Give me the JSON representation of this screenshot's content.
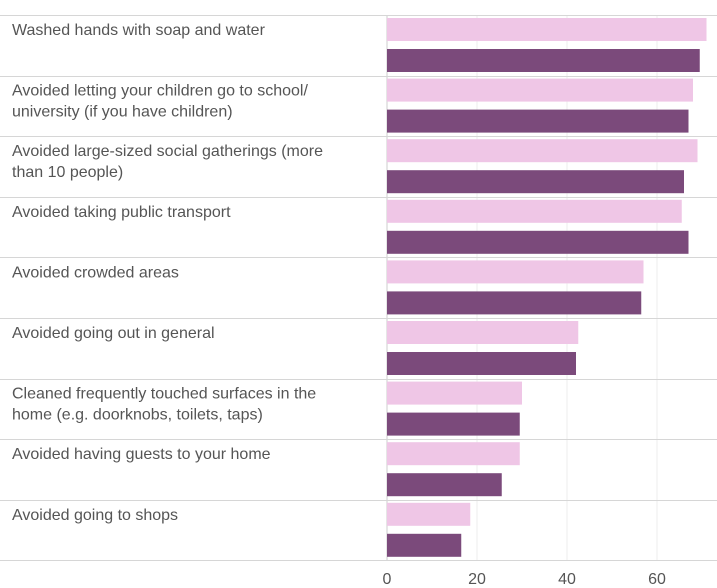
{
  "chart_data": {
    "type": "bar",
    "orientation": "horizontal",
    "categories": [
      [
        "Washed hands with soap and water"
      ],
      [
        "Avoided letting your children go to school/",
        "university  (if you have children)"
      ],
      [
        "Avoided large-sized social gatherings (more",
        "than 10 people)"
      ],
      [
        "Avoided taking public transport"
      ],
      [
        "Avoided crowded areas"
      ],
      [
        "Avoided going out in general"
      ],
      [
        "Cleaned frequently touched surfaces in the",
        "home (e.g. doorknobs, toilets, taps)"
      ],
      [
        "Avoided having guests to your home"
      ],
      [
        "Avoided going to shops"
      ]
    ],
    "series": [
      {
        "values": [
          71,
          68,
          69,
          65.5,
          57,
          42.5,
          30,
          29.5,
          18.5
        ],
        "color": "#efc6e6"
      },
      {
        "values": [
          69.5,
          67,
          66,
          67,
          56.5,
          42,
          29.5,
          25.5,
          16.5
        ],
        "color": "#7b4a7b"
      }
    ],
    "xticks": [
      0,
      20,
      40,
      60
    ],
    "xlim": [
      0,
      72
    ],
    "grid": true,
    "title": "",
    "xlabel": "",
    "ylabel": ""
  }
}
